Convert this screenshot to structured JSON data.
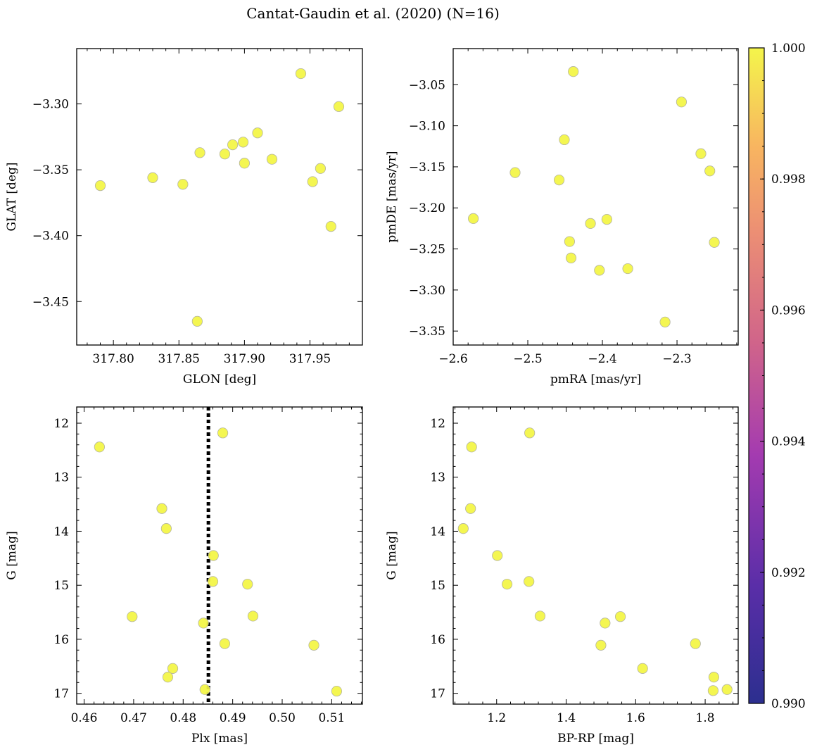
{
  "figure": {
    "title": "Cantat-Gaudin et al. (2020) (N=16)"
  },
  "chart_data": [
    {
      "type": "scatter",
      "xlabel": "GLON [deg]",
      "ylabel": "GLAT [deg]",
      "xlim": [
        317.772,
        317.99
      ],
      "ylim": [
        -3.483,
        -3.258
      ],
      "y_inverted": false,
      "xticks": [
        317.8,
        317.85,
        317.9,
        317.95
      ],
      "xtick_labels": [
        "317.80",
        "317.85",
        "317.90",
        "317.95"
      ],
      "yticks": [
        -3.3,
        -3.35,
        -3.4,
        -3.45
      ],
      "ytick_labels": [
        "−3.30",
        "−3.35",
        "−3.40",
        "−3.45"
      ],
      "x": [
        317.79,
        317.83,
        317.853,
        317.866,
        317.885,
        317.891,
        317.899,
        317.9,
        317.91,
        317.921,
        317.943,
        317.952,
        317.958,
        317.966,
        317.972,
        317.864
      ],
      "y": [
        -3.362,
        -3.356,
        -3.361,
        -3.337,
        -3.338,
        -3.331,
        -3.329,
        -3.345,
        -3.322,
        -3.342,
        -3.277,
        -3.359,
        -3.349,
        -3.393,
        -3.302,
        -3.465
      ]
    },
    {
      "type": "scatter",
      "xlabel": "pmRA [mas/yr]",
      "ylabel": "pmDE [mas/yr]",
      "xlim": [
        -2.6,
        -2.218
      ],
      "ylim": [
        -3.367,
        -3.006
      ],
      "y_inverted": false,
      "xticks": [
        -2.6,
        -2.5,
        -2.4,
        -2.3
      ],
      "xtick_labels": [
        "−2.6",
        "−2.5",
        "−2.4",
        "−2.3"
      ],
      "yticks": [
        -3.05,
        -3.1,
        -3.15,
        -3.2,
        -3.25,
        -3.3,
        -3.35
      ],
      "ytick_labels": [
        "−3.05",
        "−3.10",
        "−3.15",
        "−3.20",
        "−3.25",
        "−3.30",
        "−3.35"
      ],
      "x": [
        -2.439,
        -2.294,
        -2.451,
        -2.517,
        -2.458,
        -2.268,
        -2.256,
        -2.573,
        -2.416,
        -2.394,
        -2.444,
        -2.442,
        -2.25,
        -2.404,
        -2.366,
        -2.316
      ],
      "y": [
        -3.034,
        -3.071,
        -3.117,
        -3.157,
        -3.166,
        -3.134,
        -3.155,
        -3.213,
        -3.219,
        -3.214,
        -3.241,
        -3.261,
        -3.242,
        -3.276,
        -3.274,
        -3.339
      ]
    },
    {
      "type": "scatter",
      "xlabel": "Plx [mas]",
      "ylabel": "G [mag]",
      "xlim": [
        0.4585,
        0.5162
      ],
      "ylim": [
        17.2,
        11.7
      ],
      "y_inverted": true,
      "xticks": [
        0.46,
        0.47,
        0.48,
        0.49,
        0.5,
        0.51
      ],
      "xtick_labels": [
        "0.46",
        "0.47",
        "0.48",
        "0.49",
        "0.50",
        "0.51"
      ],
      "yticks": [
        12,
        13,
        14,
        15,
        16,
        17
      ],
      "ytick_labels": [
        "12",
        "13",
        "14",
        "15",
        "16",
        "17"
      ],
      "vline_x": 0.4851,
      "x": [
        0.488,
        0.4631,
        0.4757,
        0.4766,
        0.4861,
        0.486,
        0.493,
        0.4697,
        0.4941,
        0.4841,
        0.4884,
        0.5064,
        0.4779,
        0.4769,
        0.4844,
        0.511
      ],
      "y": [
        12.18,
        12.44,
        13.58,
        13.95,
        14.45,
        14.93,
        14.98,
        15.58,
        15.57,
        15.7,
        16.08,
        16.11,
        16.54,
        16.7,
        16.93,
        16.96
      ]
    },
    {
      "type": "scatter",
      "xlabel": "BP-RP [mag]",
      "ylabel": "G [mag]",
      "xlim": [
        1.075,
        1.895
      ],
      "ylim": [
        17.2,
        11.7
      ],
      "y_inverted": true,
      "xticks": [
        1.2,
        1.4,
        1.6,
        1.8
      ],
      "xtick_labels": [
        "1.2",
        "1.4",
        "1.6",
        "1.8"
      ],
      "yticks": [
        12,
        13,
        14,
        15,
        16,
        17
      ],
      "ytick_labels": [
        "12",
        "13",
        "14",
        "15",
        "16",
        "17"
      ],
      "x": [
        1.295,
        1.128,
        1.125,
        1.104,
        1.202,
        1.293,
        1.23,
        1.325,
        1.556,
        1.512,
        1.5,
        1.772,
        1.62,
        1.825,
        1.863,
        1.823
      ],
      "y": [
        12.18,
        12.44,
        13.58,
        13.95,
        14.45,
        14.93,
        14.98,
        15.57,
        15.58,
        15.7,
        16.11,
        16.08,
        16.54,
        16.7,
        16.93,
        16.95
      ]
    }
  ],
  "colorbar": {
    "range": [
      0.99,
      1.0
    ],
    "ticks": [
      0.99,
      0.992,
      0.994,
      0.996,
      0.998,
      1.0
    ],
    "tick_labels": [
      "0.990",
      "0.992",
      "0.994",
      "0.996",
      "0.998",
      "1.000"
    ],
    "colormap": "plasma"
  },
  "colors": {
    "marker_fill": "#f3f542",
    "marker_edge": "#b4b4a0",
    "vline": "#000000"
  }
}
